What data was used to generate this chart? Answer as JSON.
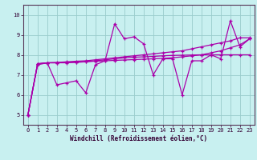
{
  "xlabel": "Windchill (Refroidissement éolien,°C)",
  "background_color": "#c8f0f0",
  "line_color": "#aa00aa",
  "grid_color": "#99cccc",
  "xlim": [
    -0.5,
    23.5
  ],
  "ylim": [
    4.5,
    10.5
  ],
  "xticks": [
    0,
    1,
    2,
    3,
    4,
    5,
    6,
    7,
    8,
    9,
    10,
    11,
    12,
    13,
    14,
    15,
    16,
    17,
    18,
    19,
    20,
    21,
    22,
    23
  ],
  "yticks": [
    5,
    6,
    7,
    8,
    9,
    10
  ],
  "series": [
    [
      5.0,
      7.5,
      7.6,
      6.5,
      6.6,
      6.7,
      6.1,
      7.5,
      7.7,
      9.55,
      8.8,
      8.9,
      8.55,
      7.0,
      7.8,
      7.8,
      6.0,
      7.7,
      7.7,
      8.0,
      7.8,
      9.7,
      8.4,
      8.8
    ],
    [
      5.0,
      7.55,
      7.6,
      7.6,
      7.6,
      7.62,
      7.65,
      7.7,
      7.75,
      7.8,
      7.85,
      7.88,
      7.9,
      7.92,
      7.95,
      7.97,
      7.98,
      7.99,
      8.0,
      8.0,
      8.0,
      8.0,
      8.0,
      8.0
    ],
    [
      5.0,
      7.55,
      7.6,
      7.62,
      7.65,
      7.68,
      7.7,
      7.75,
      7.8,
      7.85,
      7.9,
      7.95,
      8.0,
      8.05,
      8.1,
      8.15,
      8.2,
      8.3,
      8.4,
      8.5,
      8.6,
      8.7,
      8.85,
      8.85
    ],
    [
      5.0,
      7.55,
      7.6,
      7.6,
      7.62,
      7.64,
      7.66,
      7.68,
      7.7,
      7.72,
      7.74,
      7.76,
      7.78,
      7.8,
      7.82,
      7.85,
      7.9,
      7.95,
      8.0,
      8.1,
      8.2,
      8.35,
      8.5,
      8.8
    ]
  ]
}
